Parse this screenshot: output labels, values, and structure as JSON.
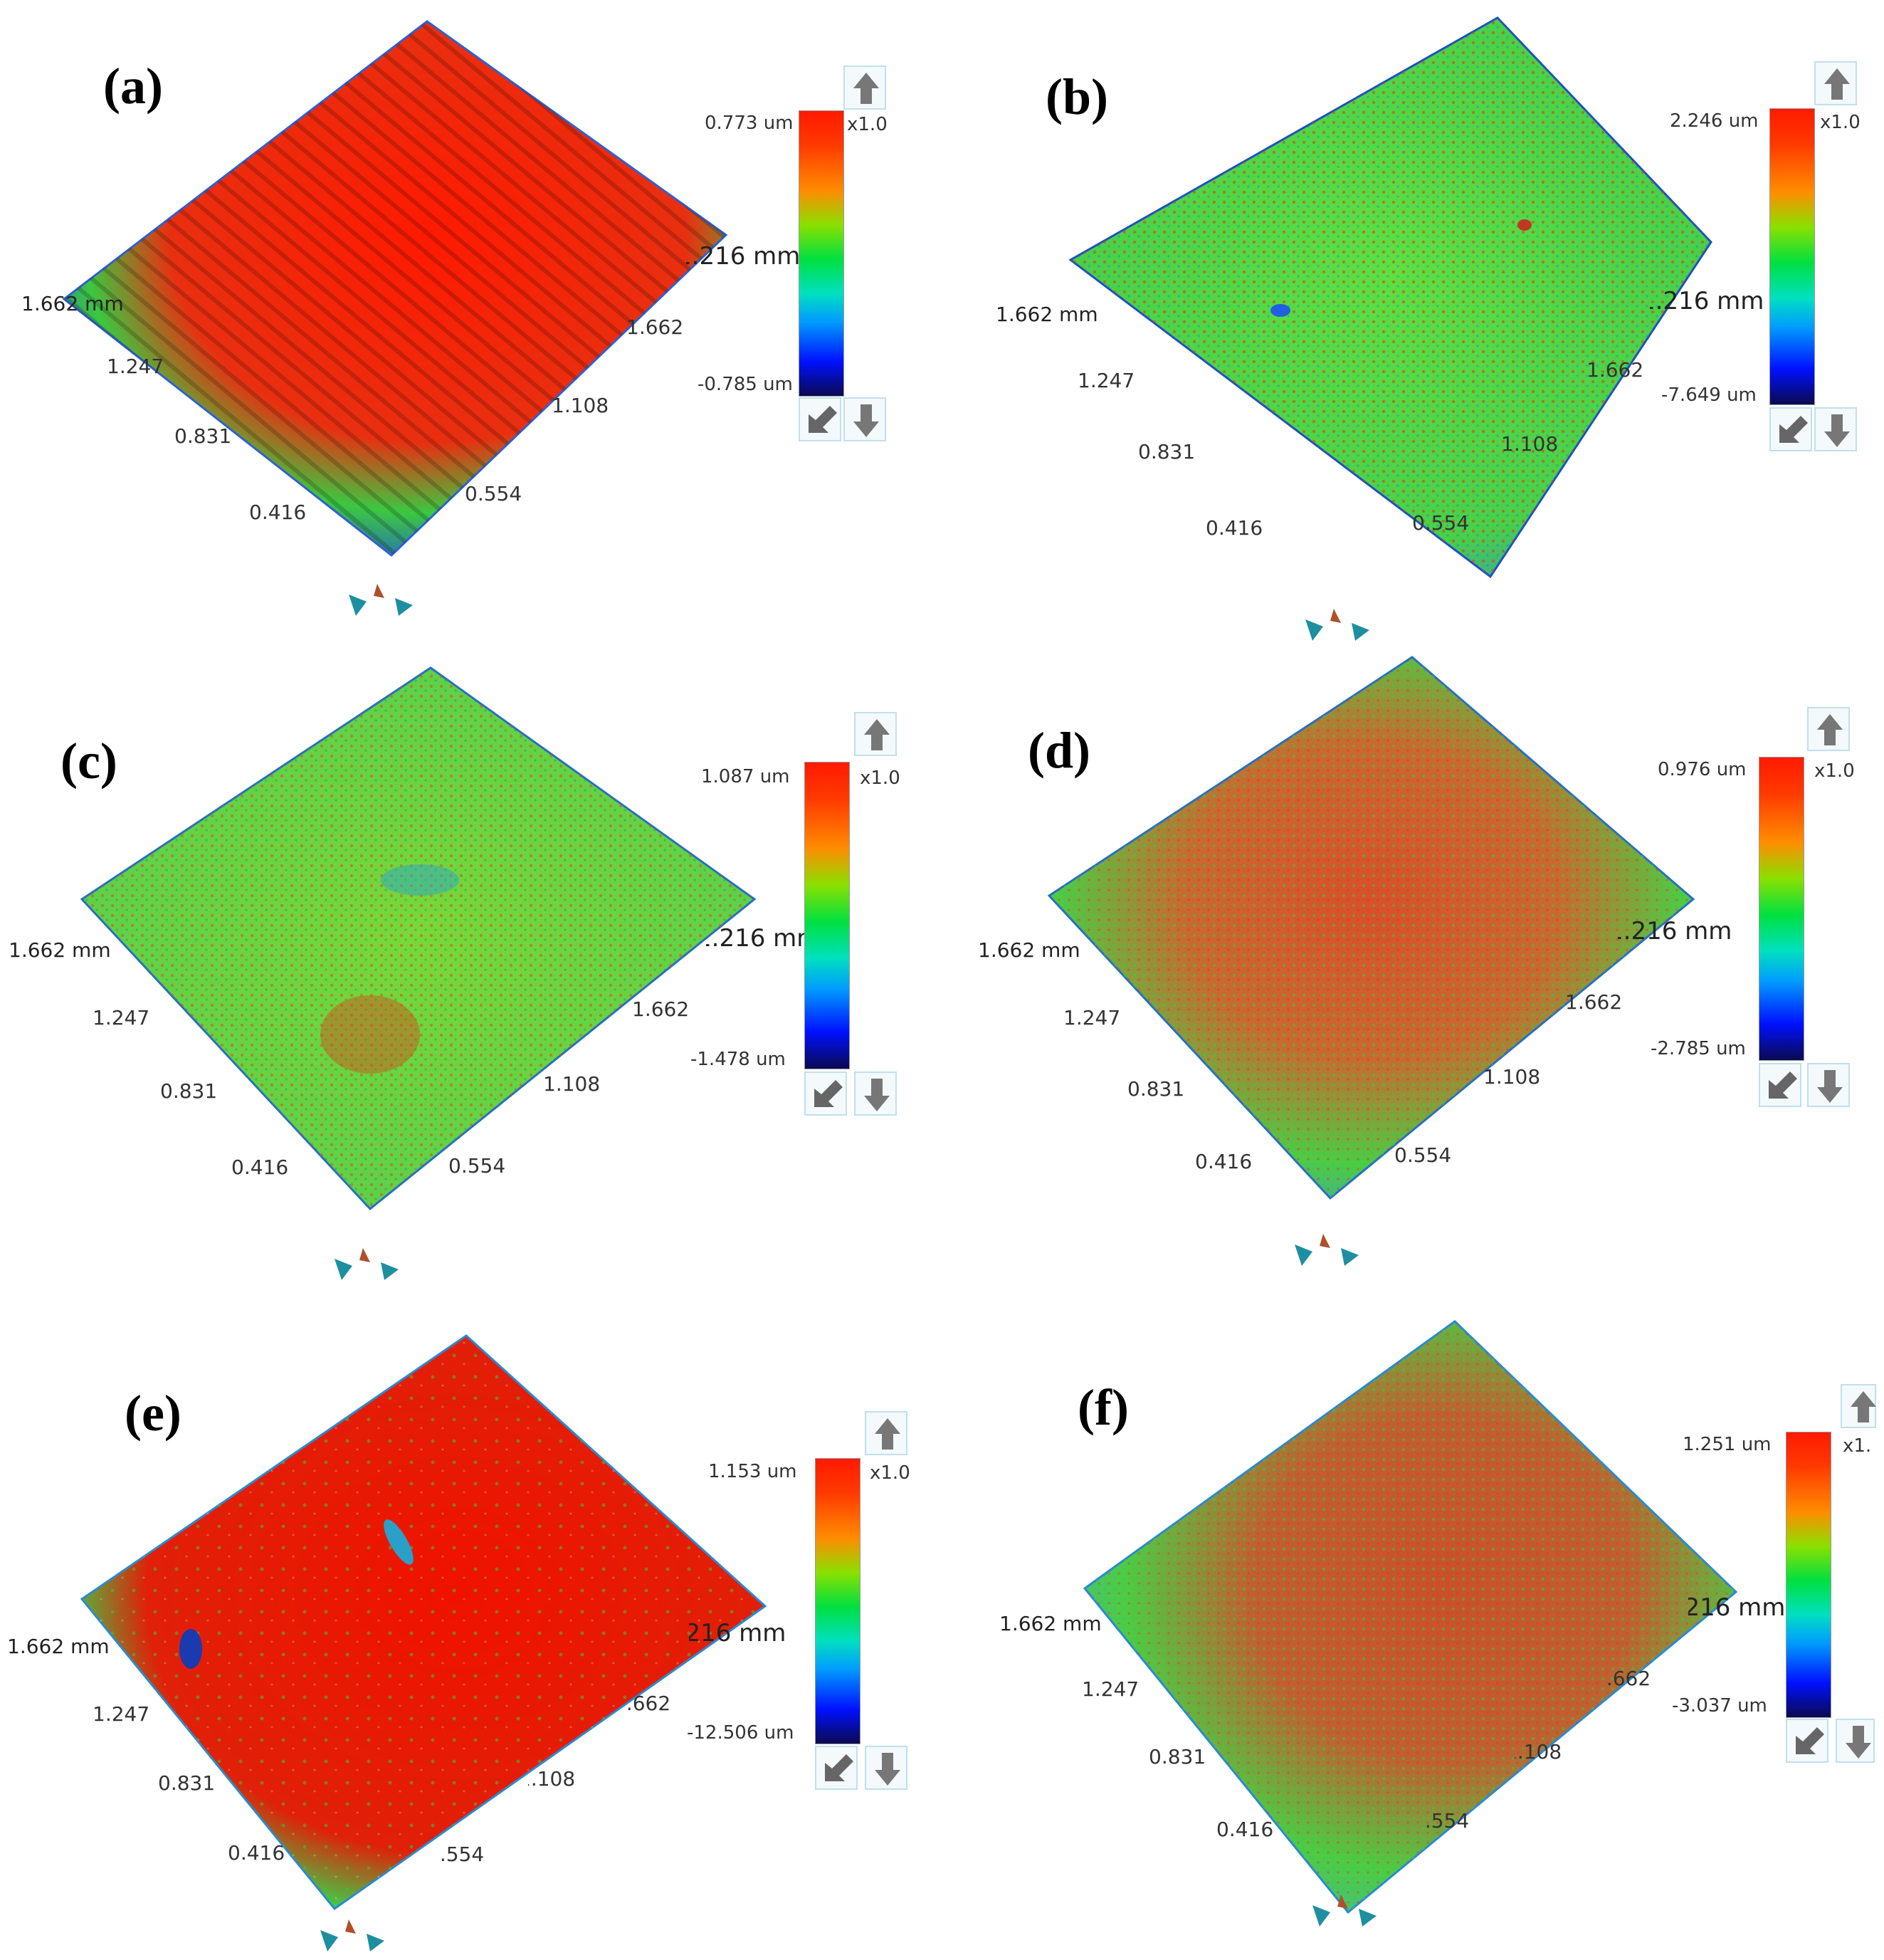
{
  "panels": [
    {
      "label": "(a)",
      "max": "0.773 um",
      "min": "-0.785 um",
      "scale": "x1.0",
      "mm_y": "1.662 mm",
      "mm_x": "1.216 mm",
      "y_ticks": [
        "1.247",
        "0.831",
        "0.416"
      ],
      "x_ticks": [
        "1.662",
        "1.108",
        "0.554"
      ],
      "texture": "ridged",
      "colors": {
        "center": "#ff1a00",
        "edge": "#22a0ff"
      }
    },
    {
      "label": "(b)",
      "max": "2.246 um",
      "min": "-7.649 um",
      "scale": "x1.0",
      "mm_y": "1.662 mm",
      "mm_x": "1.216 mm",
      "y_ticks": [
        "1.247",
        "0.831",
        "0.416"
      ],
      "x_ticks": [
        "1.662",
        "1.108",
        "0.554"
      ],
      "texture": "grainy",
      "colors": {
        "center": "#4fd83a",
        "edge": "#2e7de0"
      }
    },
    {
      "label": "(c)",
      "max": "1.087 um",
      "min": "-1.478 um",
      "scale": "x1.0",
      "mm_y": "1.662 mm",
      "mm_x": "1.216 mm",
      "y_ticks": [
        "1.247",
        "0.831",
        "0.416"
      ],
      "x_ticks": [
        "1.662",
        "1.108",
        "0.554"
      ],
      "texture": "grainy",
      "colors": {
        "center": "#7ed83a",
        "edge": "#3aa0d0"
      }
    },
    {
      "label": "(d)",
      "max": "0.976 um",
      "min": "-2.785 um",
      "scale": "x1.0",
      "mm_y": "1.662 mm",
      "mm_x": "1.216 mm",
      "y_ticks": [
        "1.247",
        "0.831",
        "0.416"
      ],
      "x_ticks": [
        "1.662",
        "1.108",
        "0.554"
      ],
      "texture": "grainy",
      "colors": {
        "center": "#d8502a",
        "edge": "#3cc840"
      }
    },
    {
      "label": "(e)",
      "max": "1.153 um",
      "min": "-12.506 um",
      "scale": "x1.0",
      "mm_y": "1.662 mm",
      "mm_x": "1.216 mm",
      "y_ticks": [
        "1.247",
        "0.831",
        "0.416"
      ],
      "x_ticks": [
        "1.662",
        "1.108",
        "0.554"
      ],
      "texture": "smooth",
      "colors": {
        "center": "#ee1400",
        "edge": "#3cc840"
      }
    },
    {
      "label": "(f)",
      "max": "1.251 um",
      "min": "-3.037 um",
      "scale": "x1.",
      "mm_y": "1.662 mm",
      "mm_x": "1.216 mm",
      "y_ticks": [
        "1.247",
        "0.831",
        "0.416"
      ],
      "x_ticks": [
        "1.662",
        "1.108",
        "0.554"
      ],
      "texture": "grainy",
      "colors": {
        "center": "#c9502a",
        "edge": "#48c840"
      }
    }
  ],
  "icons": {
    "scale_up": "arrow-up-icon",
    "scale_down": "arrow-down-icon",
    "reset": "reset-view-icon",
    "rotate": "rotate-handle-icon"
  }
}
